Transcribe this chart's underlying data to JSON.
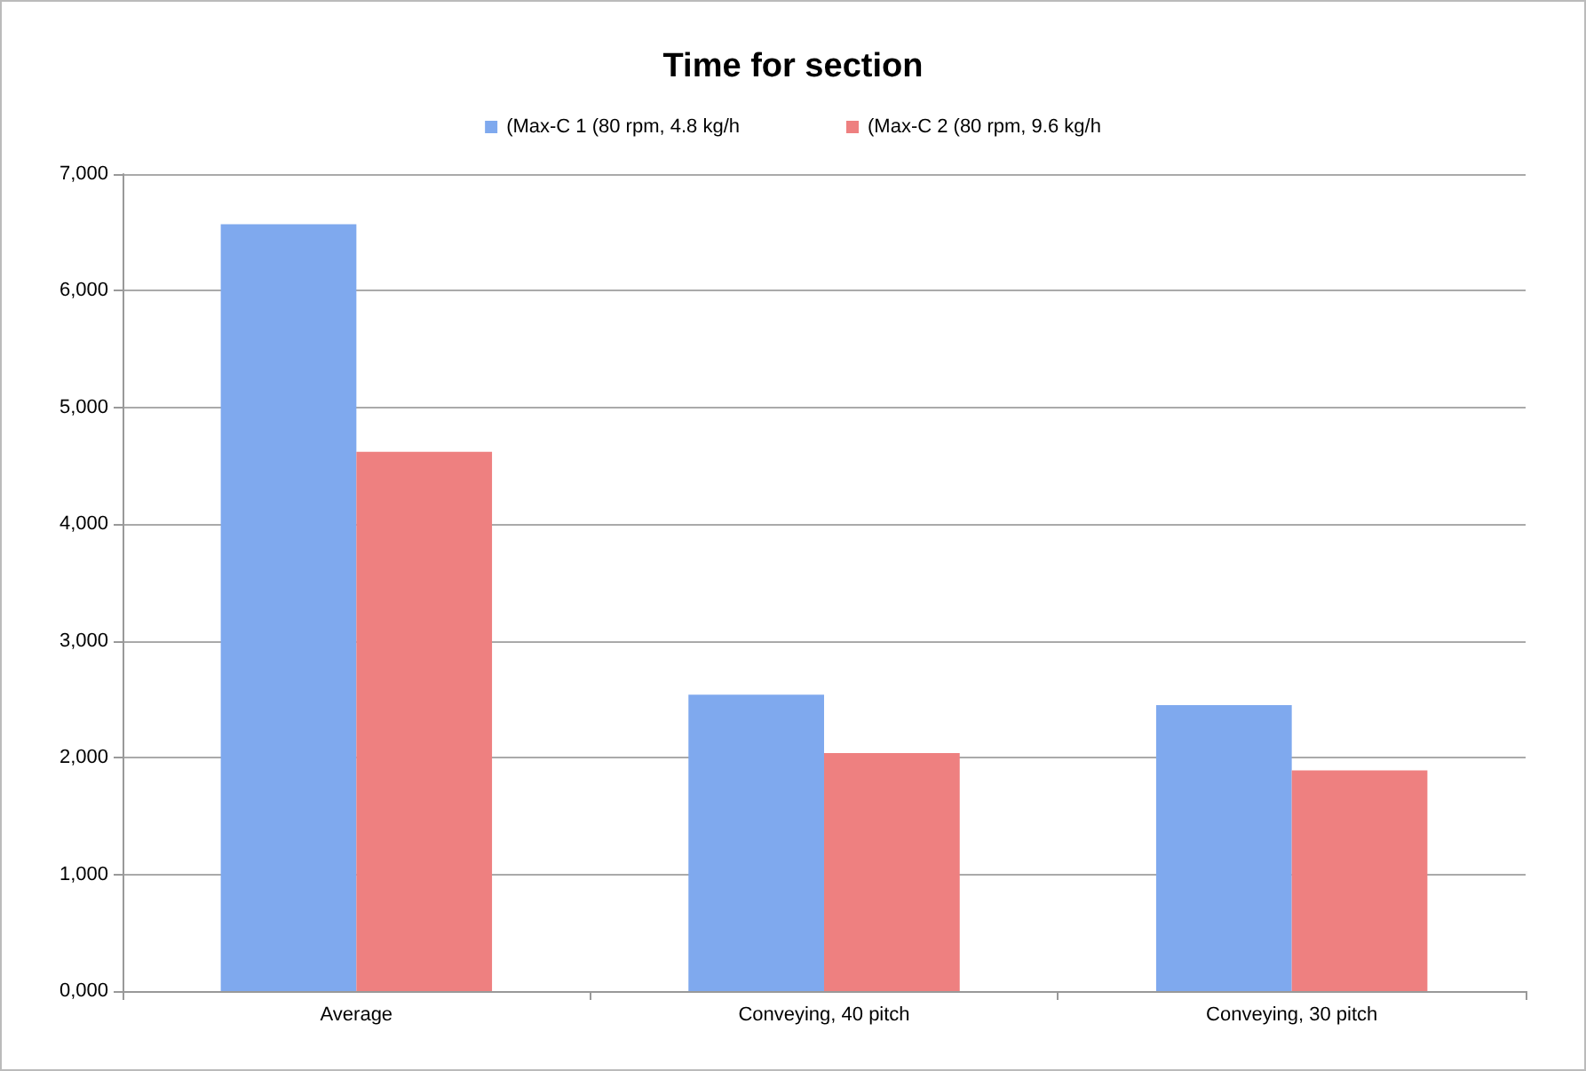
{
  "chart_data": {
    "type": "bar",
    "title": "Time for section",
    "categories": [
      "Average",
      "Conveying, 40 pitch",
      "Conveying, 30 pitch"
    ],
    "series": [
      {
        "name": "(Max-C 1 (80 rpm, 4.8 kg/h",
        "color": "#7fa9ee",
        "values": [
          6570,
          2540,
          2450
        ]
      },
      {
        "name": "(Max-C 2 (80 rpm, 9.6 kg/h",
        "color": "#ee8080",
        "values": [
          4620,
          2040,
          1890
        ]
      }
    ],
    "ylim": [
      0,
      7000
    ],
    "yticks": [
      {
        "value": 0,
        "label": "0,000"
      },
      {
        "value": 1000,
        "label": "1,000"
      },
      {
        "value": 2000,
        "label": "2,000"
      },
      {
        "value": 3000,
        "label": "3,000"
      },
      {
        "value": 4000,
        "label": "4,000"
      },
      {
        "value": 5000,
        "label": "5,000"
      },
      {
        "value": 6000,
        "label": "6,000"
      },
      {
        "value": 7000,
        "label": "7,000"
      }
    ],
    "grid": "y",
    "legend": "top"
  }
}
